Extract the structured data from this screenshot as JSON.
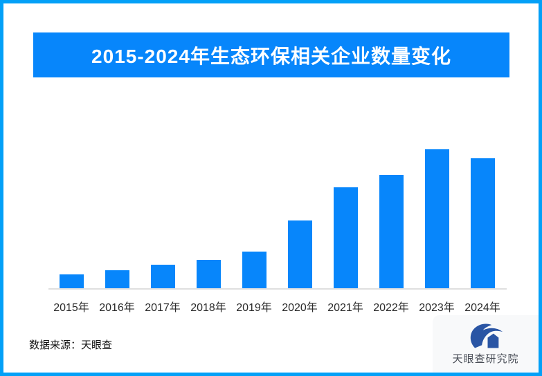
{
  "frame": {
    "border_color": "#03A0F7",
    "background": "#FFFFFF"
  },
  "title_banner": {
    "text": "2015-2024年生态环保相关企业数量变化",
    "background": "#0786FB",
    "text_color": "#FFFFFF"
  },
  "chart_data": {
    "type": "bar",
    "title": "2015-2024年生态环保相关企业数量变化",
    "categories": [
      "2015年",
      "2016年",
      "2017年",
      "2018年",
      "2019年",
      "2020年",
      "2021年",
      "2022年",
      "2023年",
      "2024年"
    ],
    "values": [
      20,
      26,
      34,
      41,
      53,
      98,
      146,
      164,
      201,
      188
    ],
    "note": "no numeric y-axis or data labels shown; values are pixel-proportional bar heights estimated from the image",
    "bar_color": "#0786FB",
    "axis_line_color": "#DFDFDF",
    "xlabel": "",
    "ylabel": "",
    "y_axis_visible": false,
    "grid": false,
    "legend": "none",
    "tick_label_color": "#2B2B2B"
  },
  "footer": {
    "source_text": "数据来源：天眼查",
    "logo": {
      "icon": "tianyancha-eagle-logo",
      "text": "天眼查研究院",
      "icon_color": "#2A55A4",
      "text_color": "#474C55",
      "card_background": "#F8F9FA"
    }
  }
}
